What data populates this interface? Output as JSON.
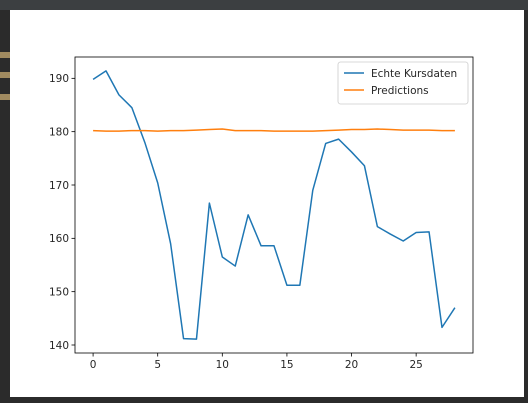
{
  "chart_data": {
    "type": "line",
    "xlim": [
      -1.4,
      29.4
    ],
    "ylim": [
      138.5,
      194.0
    ],
    "x_ticks": [
      0,
      5,
      10,
      15,
      20,
      25
    ],
    "y_ticks": [
      140,
      150,
      160,
      170,
      180,
      190
    ],
    "legend_position": "upper right",
    "grid": false,
    "series": [
      {
        "name": "Echte Kursdaten",
        "color": "#1f77b4",
        "x": [
          0,
          1,
          2,
          3,
          4,
          5,
          6,
          7,
          8,
          9,
          10,
          11,
          12,
          13,
          14,
          15,
          16,
          17,
          18,
          19,
          20,
          21,
          22,
          23,
          24,
          25,
          26,
          27,
          28
        ],
        "values": [
          189.8,
          191.4,
          186.9,
          184.5,
          178.0,
          170.4,
          159.0,
          141.2,
          141.1,
          166.6,
          156.5,
          154.8,
          164.4,
          158.6,
          158.6,
          151.2,
          151.2,
          169.0,
          177.8,
          178.6,
          176.2,
          173.6,
          162.2,
          160.8,
          159.5,
          161.1,
          161.2,
          143.3,
          147.0
        ]
      },
      {
        "name": "Predictions",
        "color": "#ff7f0e",
        "x": [
          0,
          1,
          2,
          3,
          4,
          5,
          6,
          7,
          8,
          9,
          10,
          11,
          12,
          13,
          14,
          15,
          16,
          17,
          18,
          19,
          20,
          21,
          22,
          23,
          24,
          25,
          26,
          27,
          28
        ],
        "values": [
          180.2,
          180.1,
          180.1,
          180.2,
          180.2,
          180.1,
          180.2,
          180.2,
          180.3,
          180.4,
          180.5,
          180.2,
          180.2,
          180.2,
          180.1,
          180.1,
          180.1,
          180.1,
          180.2,
          180.3,
          180.4,
          180.4,
          180.5,
          180.4,
          180.3,
          180.3,
          180.3,
          180.2,
          180.2
        ]
      }
    ]
  }
}
